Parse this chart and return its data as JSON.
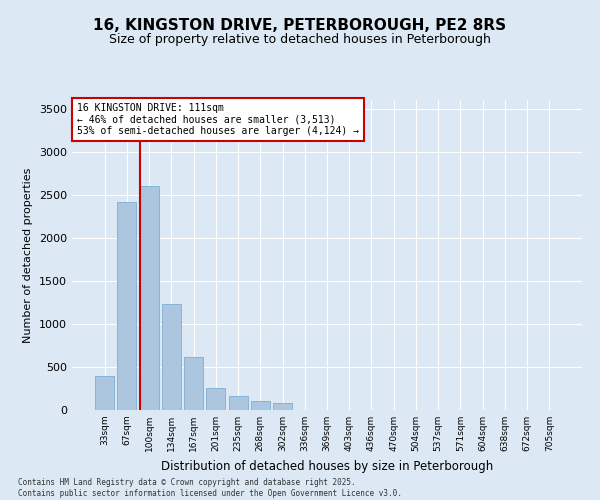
{
  "title": "16, KINGSTON DRIVE, PETERBOROUGH, PE2 8RS",
  "subtitle": "Size of property relative to detached houses in Peterborough",
  "xlabel": "Distribution of detached houses by size in Peterborough",
  "ylabel": "Number of detached properties",
  "categories": [
    "33sqm",
    "67sqm",
    "100sqm",
    "134sqm",
    "167sqm",
    "201sqm",
    "235sqm",
    "268sqm",
    "302sqm",
    "336sqm",
    "369sqm",
    "403sqm",
    "436sqm",
    "470sqm",
    "504sqm",
    "537sqm",
    "571sqm",
    "604sqm",
    "638sqm",
    "672sqm",
    "705sqm"
  ],
  "values": [
    390,
    2420,
    2600,
    1230,
    620,
    250,
    160,
    110,
    80,
    0,
    0,
    0,
    0,
    0,
    0,
    0,
    0,
    0,
    0,
    0,
    0
  ],
  "bar_color": "#adc6e0",
  "bar_edge_color": "#7aafd4",
  "vline_color": "#cc0000",
  "annotation_text": "16 KINGSTON DRIVE: 111sqm\n← 46% of detached houses are smaller (3,513)\n53% of semi-detached houses are larger (4,124) →",
  "annotation_box_color": "#ffffff",
  "annotation_box_edge_color": "#cc0000",
  "ylim": [
    0,
    3600
  ],
  "yticks": [
    0,
    500,
    1000,
    1500,
    2000,
    2500,
    3000,
    3500
  ],
  "background_color": "#dce9f5",
  "plot_background_color": "#dce9f5",
  "grid_color": "#ffffff",
  "footer_line1": "Contains HM Land Registry data © Crown copyright and database right 2025.",
  "footer_line2": "Contains public sector information licensed under the Open Government Licence v3.0."
}
